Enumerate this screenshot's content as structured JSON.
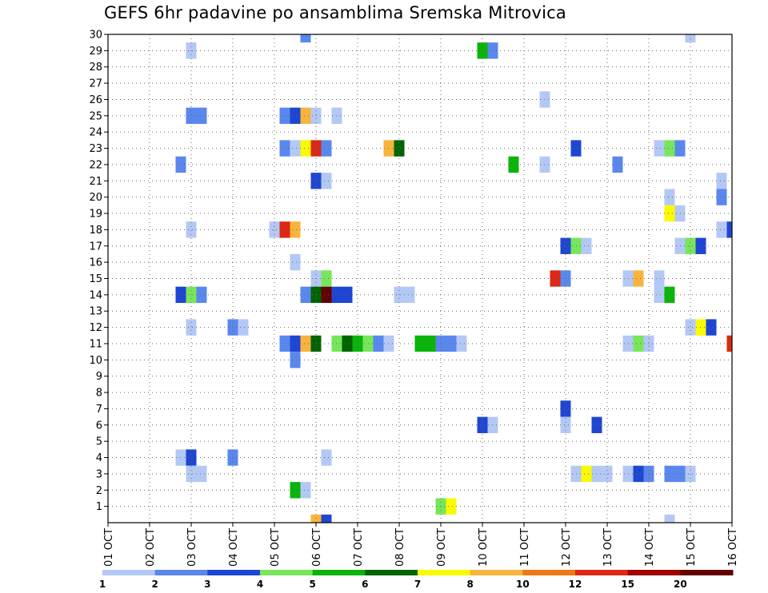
{
  "chart_data": {
    "type": "heatmap",
    "title": "GEFS 6hr padavine po ansamblima Sremska Mitrovica",
    "xlabel": "",
    "ylabel": "",
    "x_ticks": [
      "01 OCT",
      "02 OCT",
      "03 OCT",
      "04 OCT",
      "05 OCT",
      "06 OCT",
      "07 OCT",
      "08 OCT",
      "09 OCT",
      "10 OCT",
      "11 OCT",
      "12 OCT",
      "13 OCT",
      "14 OCT",
      "15 OCT",
      "16 OCT"
    ],
    "xlim": [
      0,
      60
    ],
    "x_unit": "6-hour steps since 01 OCT 00Z",
    "y_ticks": [
      1,
      2,
      3,
      4,
      5,
      6,
      7,
      8,
      9,
      10,
      11,
      12,
      13,
      14,
      15,
      16,
      17,
      18,
      19,
      20,
      21,
      22,
      23,
      24,
      25,
      26,
      27,
      28,
      29,
      30
    ],
    "ylim": [
      0,
      30
    ],
    "grid": true,
    "colorbar": {
      "colors": [
        "#b4c8f5",
        "#5a87ee",
        "#1e46d2",
        "#78e65a",
        "#0ab40a",
        "#006400",
        "#fafa00",
        "#f8b43c",
        "#f07814",
        "#dc2814",
        "#a00000",
        "#640000"
      ],
      "labels": [
        "1",
        "2",
        "3",
        "4",
        "5",
        "6",
        "7",
        "8",
        "10",
        "12",
        "15",
        "20"
      ]
    },
    "cells": [
      {
        "member": 30,
        "t": 19,
        "v": 2
      },
      {
        "member": 30,
        "t": 56,
        "v": 1
      },
      {
        "member": 29,
        "t": 8,
        "v": 1
      },
      {
        "member": 29,
        "t": 36,
        "v": 5
      },
      {
        "member": 29,
        "t": 37,
        "v": 2
      },
      {
        "member": 26,
        "t": 42,
        "v": 1
      },
      {
        "member": 25,
        "t": 8,
        "v": 2
      },
      {
        "member": 25,
        "t": 9,
        "v": 2
      },
      {
        "member": 25,
        "t": 17,
        "v": 2
      },
      {
        "member": 25,
        "t": 18,
        "v": 3
      },
      {
        "member": 25,
        "t": 19,
        "v": 8
      },
      {
        "member": 25,
        "t": 20,
        "v": 1
      },
      {
        "member": 25,
        "t": 22,
        "v": 1
      },
      {
        "member": 23,
        "t": 17,
        "v": 2
      },
      {
        "member": 23,
        "t": 18,
        "v": 1
      },
      {
        "member": 23,
        "t": 19,
        "v": 7
      },
      {
        "member": 23,
        "t": 20,
        "v": 10
      },
      {
        "member": 23,
        "t": 21,
        "v": 2
      },
      {
        "member": 23,
        "t": 27,
        "v": 8
      },
      {
        "member": 23,
        "t": 28,
        "v": 6
      },
      {
        "member": 23,
        "t": 45,
        "v": 3
      },
      {
        "member": 23,
        "t": 53,
        "v": 1
      },
      {
        "member": 23,
        "t": 54,
        "v": 4
      },
      {
        "member": 23,
        "t": 55,
        "v": 2
      },
      {
        "member": 22,
        "t": 7,
        "v": 2
      },
      {
        "member": 22,
        "t": 39,
        "v": 5
      },
      {
        "member": 22,
        "t": 42,
        "v": 1
      },
      {
        "member": 22,
        "t": 49,
        "v": 2
      },
      {
        "member": 21,
        "t": 20,
        "v": 3
      },
      {
        "member": 21,
        "t": 21,
        "v": 1
      },
      {
        "member": 21,
        "t": 59,
        "v": 1
      },
      {
        "member": 20,
        "t": 54,
        "v": 1
      },
      {
        "member": 20,
        "t": 59,
        "v": 2
      },
      {
        "member": 19,
        "t": 54,
        "v": 7
      },
      {
        "member": 19,
        "t": 55,
        "v": 1
      },
      {
        "member": 18,
        "t": 8,
        "v": 1
      },
      {
        "member": 18,
        "t": 16,
        "v": 1
      },
      {
        "member": 18,
        "t": 17,
        "v": 10
      },
      {
        "member": 18,
        "t": 18,
        "v": 8
      },
      {
        "member": 18,
        "t": 59,
        "v": 1
      },
      {
        "member": 18,
        "t": 60,
        "v": 3
      },
      {
        "member": 17,
        "t": 44,
        "v": 3
      },
      {
        "member": 17,
        "t": 45,
        "v": 4
      },
      {
        "member": 17,
        "t": 46,
        "v": 1
      },
      {
        "member": 17,
        "t": 55,
        "v": 1
      },
      {
        "member": 17,
        "t": 56,
        "v": 4
      },
      {
        "member": 17,
        "t": 57,
        "v": 3
      },
      {
        "member": 16,
        "t": 18,
        "v": 1
      },
      {
        "member": 15,
        "t": 43,
        "v": 10
      },
      {
        "member": 15,
        "t": 44,
        "v": 2
      },
      {
        "member": 15,
        "t": 20,
        "v": 1
      },
      {
        "member": 15,
        "t": 21,
        "v": 4
      },
      {
        "member": 15,
        "t": 50,
        "v": 1
      },
      {
        "member": 15,
        "t": 51,
        "v": 8
      },
      {
        "member": 15,
        "t": 53,
        "v": 1
      },
      {
        "member": 14,
        "t": 7,
        "v": 3
      },
      {
        "member": 14,
        "t": 8,
        "v": 4
      },
      {
        "member": 14,
        "t": 9,
        "v": 2
      },
      {
        "member": 14,
        "t": 19,
        "v": 2
      },
      {
        "member": 14,
        "t": 20,
        "v": 6
      },
      {
        "member": 14,
        "t": 21,
        "v": 12
      },
      {
        "member": 14,
        "t": 22,
        "v": 3
      },
      {
        "member": 14,
        "t": 23,
        "v": 3
      },
      {
        "member": 14,
        "t": 28,
        "v": 1
      },
      {
        "member": 14,
        "t": 29,
        "v": 1
      },
      {
        "member": 14,
        "t": 53,
        "v": 1
      },
      {
        "member": 14,
        "t": 54,
        "v": 5
      },
      {
        "member": 12,
        "t": 8,
        "v": 1
      },
      {
        "member": 12,
        "t": 12,
        "v": 2
      },
      {
        "member": 12,
        "t": 13,
        "v": 1
      },
      {
        "member": 12,
        "t": 56,
        "v": 1
      },
      {
        "member": 12,
        "t": 57,
        "v": 7
      },
      {
        "member": 12,
        "t": 58,
        "v": 3
      },
      {
        "member": 11,
        "t": 17,
        "v": 2
      },
      {
        "member": 11,
        "t": 18,
        "v": 3
      },
      {
        "member": 11,
        "t": 19,
        "v": 8
      },
      {
        "member": 11,
        "t": 20,
        "v": 6
      },
      {
        "member": 11,
        "t": 22,
        "v": 4
      },
      {
        "member": 11,
        "t": 23,
        "v": 6
      },
      {
        "member": 11,
        "t": 24,
        "v": 5
      },
      {
        "member": 11,
        "t": 25,
        "v": 4
      },
      {
        "member": 11,
        "t": 26,
        "v": 2
      },
      {
        "member": 11,
        "t": 27,
        "v": 1
      },
      {
        "member": 11,
        "t": 30,
        "v": 5
      },
      {
        "member": 11,
        "t": 31,
        "v": 5
      },
      {
        "member": 11,
        "t": 32,
        "v": 2
      },
      {
        "member": 11,
        "t": 33,
        "v": 2
      },
      {
        "member": 11,
        "t": 34,
        "v": 1
      },
      {
        "member": 11,
        "t": 50,
        "v": 1
      },
      {
        "member": 11,
        "t": 51,
        "v": 4
      },
      {
        "member": 11,
        "t": 52,
        "v": 1
      },
      {
        "member": 11,
        "t": 60,
        "v": 10
      },
      {
        "member": 10,
        "t": 18,
        "v": 2
      },
      {
        "member": 7,
        "t": 44,
        "v": 3
      },
      {
        "member": 6,
        "t": 36,
        "v": 3
      },
      {
        "member": 6,
        "t": 37,
        "v": 1
      },
      {
        "member": 6,
        "t": 44,
        "v": 1
      },
      {
        "member": 6,
        "t": 47,
        "v": 3
      },
      {
        "member": 4,
        "t": 7,
        "v": 1
      },
      {
        "member": 4,
        "t": 8,
        "v": 3
      },
      {
        "member": 4,
        "t": 12,
        "v": 2
      },
      {
        "member": 4,
        "t": 21,
        "v": 1
      },
      {
        "member": 3,
        "t": 8,
        "v": 1
      },
      {
        "member": 3,
        "t": 9,
        "v": 1
      },
      {
        "member": 3,
        "t": 45,
        "v": 1
      },
      {
        "member": 3,
        "t": 46,
        "v": 7
      },
      {
        "member": 3,
        "t": 47,
        "v": 1
      },
      {
        "member": 3,
        "t": 48,
        "v": 1
      },
      {
        "member": 3,
        "t": 50,
        "v": 1
      },
      {
        "member": 3,
        "t": 51,
        "v": 3
      },
      {
        "member": 3,
        "t": 52,
        "v": 2
      },
      {
        "member": 3,
        "t": 54,
        "v": 2
      },
      {
        "member": 3,
        "t": 55,
        "v": 2
      },
      {
        "member": 3,
        "t": 56,
        "v": 1
      },
      {
        "member": 2,
        "t": 18,
        "v": 5
      },
      {
        "member": 2,
        "t": 19,
        "v": 1
      },
      {
        "member": 1,
        "t": 32,
        "v": 4
      },
      {
        "member": 1,
        "t": 33,
        "v": 7
      },
      {
        "member": 0,
        "t": 20,
        "v": 8
      },
      {
        "member": 0,
        "t": 21,
        "v": 3
      },
      {
        "member": 0,
        "t": 54,
        "v": 1
      }
    ]
  }
}
